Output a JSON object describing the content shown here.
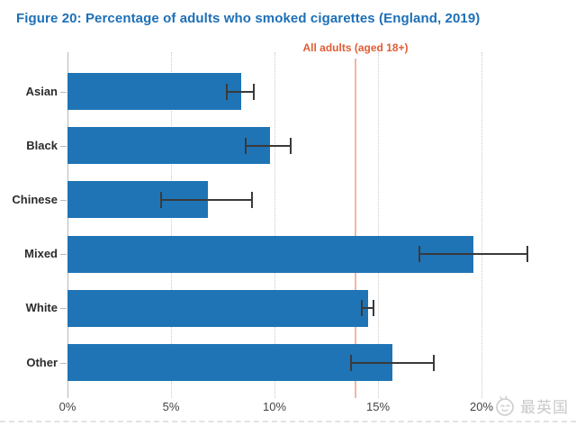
{
  "title": "Figure 20: Percentage of adults who smoked cigarettes (England, 2019)",
  "watermark": {
    "text": "最英国",
    "icon": "smiley-face-logo"
  },
  "chart_data": {
    "type": "bar",
    "orientation": "horizontal",
    "title": "Figure 20: Percentage of adults who smoked cigarettes (England, 2019)",
    "categories": [
      "Asian",
      "Black",
      "Chinese",
      "Mixed",
      "White",
      "Other"
    ],
    "values": [
      8.4,
      9.8,
      6.8,
      19.6,
      14.5,
      15.7
    ],
    "error_bars": [
      [
        7.7,
        9.0
      ],
      [
        8.6,
        10.8
      ],
      [
        4.5,
        8.9
      ],
      [
        17.0,
        22.2
      ],
      [
        14.2,
        14.8
      ],
      [
        13.7,
        17.7
      ]
    ],
    "reference_line": {
      "label": "All adults (aged 18+)",
      "value": 13.9
    },
    "x_ticks": [
      "0%",
      "5%",
      "10%",
      "15%",
      "20%"
    ],
    "x_tick_values": [
      0,
      5,
      10,
      15,
      20
    ],
    "xlim": [
      0,
      23.3
    ],
    "xlabel": "",
    "ylabel": "",
    "grid": "vertical-dotted",
    "legend": "none",
    "bar_color": "#1f74b5",
    "reference_color": "#e15d34",
    "error_bar_color": "#3a3a3a",
    "title_color": "#1d6fb7"
  }
}
